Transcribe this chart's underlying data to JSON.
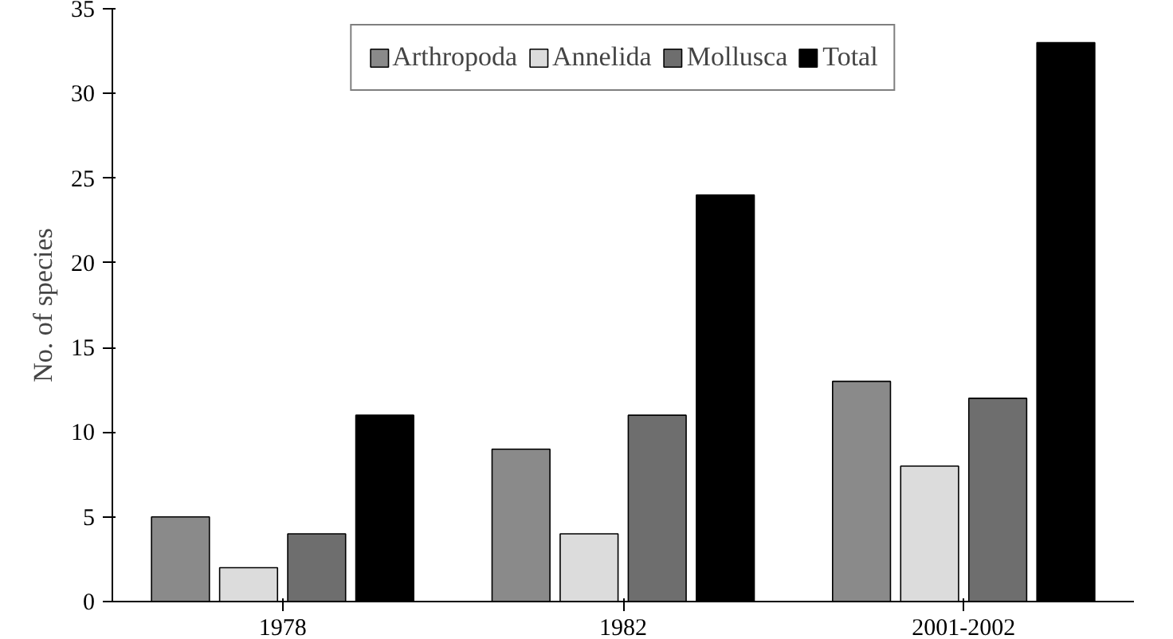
{
  "chart_data": {
    "type": "bar",
    "ylabel": "No. of species",
    "categories": [
      "1978",
      "1982",
      "2001-2002"
    ],
    "series": [
      {
        "name": "Arthropoda",
        "color": "#8a8a8a",
        "values": [
          5,
          9,
          13
        ]
      },
      {
        "name": "Annelida",
        "color": "#dcdcdc",
        "values": [
          2,
          4,
          8
        ]
      },
      {
        "name": "Mollusca",
        "color": "#6e6e6e",
        "values": [
          4,
          11,
          12
        ]
      },
      {
        "name": "Total",
        "color": "#000000",
        "values": [
          11,
          24,
          33
        ]
      }
    ],
    "ylim": [
      0,
      35
    ],
    "yticks": [
      0,
      5,
      10,
      15,
      20,
      25,
      30,
      35
    ],
    "grid": false,
    "legend": "top"
  }
}
